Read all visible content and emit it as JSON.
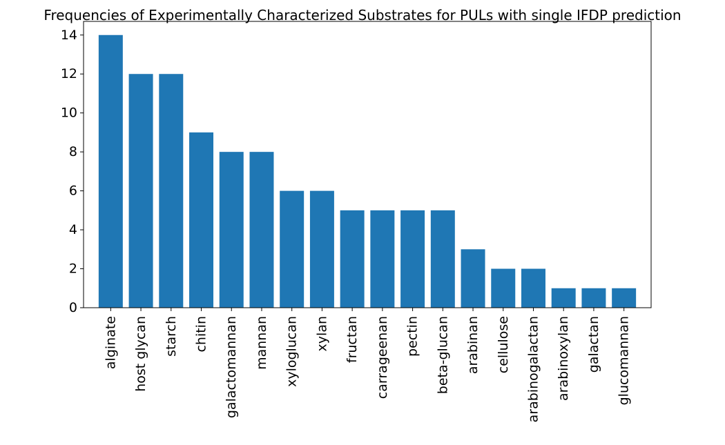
{
  "chart_data": {
    "type": "bar",
    "title": "Frequencies of Experimentally Characterized Substrates for PULs with single IFDP prediction",
    "xlabel": "",
    "ylabel": "",
    "categories": [
      "alginate",
      "host glycan",
      "starch",
      "chitin",
      "galactomannan",
      "mannan",
      "xyloglucan",
      "xylan",
      "fructan",
      "carrageenan",
      "pectin",
      "beta-glucan",
      "arabinan",
      "cellulose",
      "arabinogalactan",
      "arabinoxylan",
      "galactan",
      "glucomannan"
    ],
    "values": [
      14,
      12,
      12,
      9,
      8,
      8,
      6,
      6,
      5,
      5,
      5,
      5,
      3,
      2,
      2,
      1,
      1,
      1
    ],
    "ylim": [
      0,
      14.7
    ],
    "yticks": [
      "0",
      "2",
      "4",
      "6",
      "8",
      "10",
      "12",
      "14"
    ],
    "bar_color": "#1f77b4",
    "grid": false,
    "legend": "none"
  }
}
